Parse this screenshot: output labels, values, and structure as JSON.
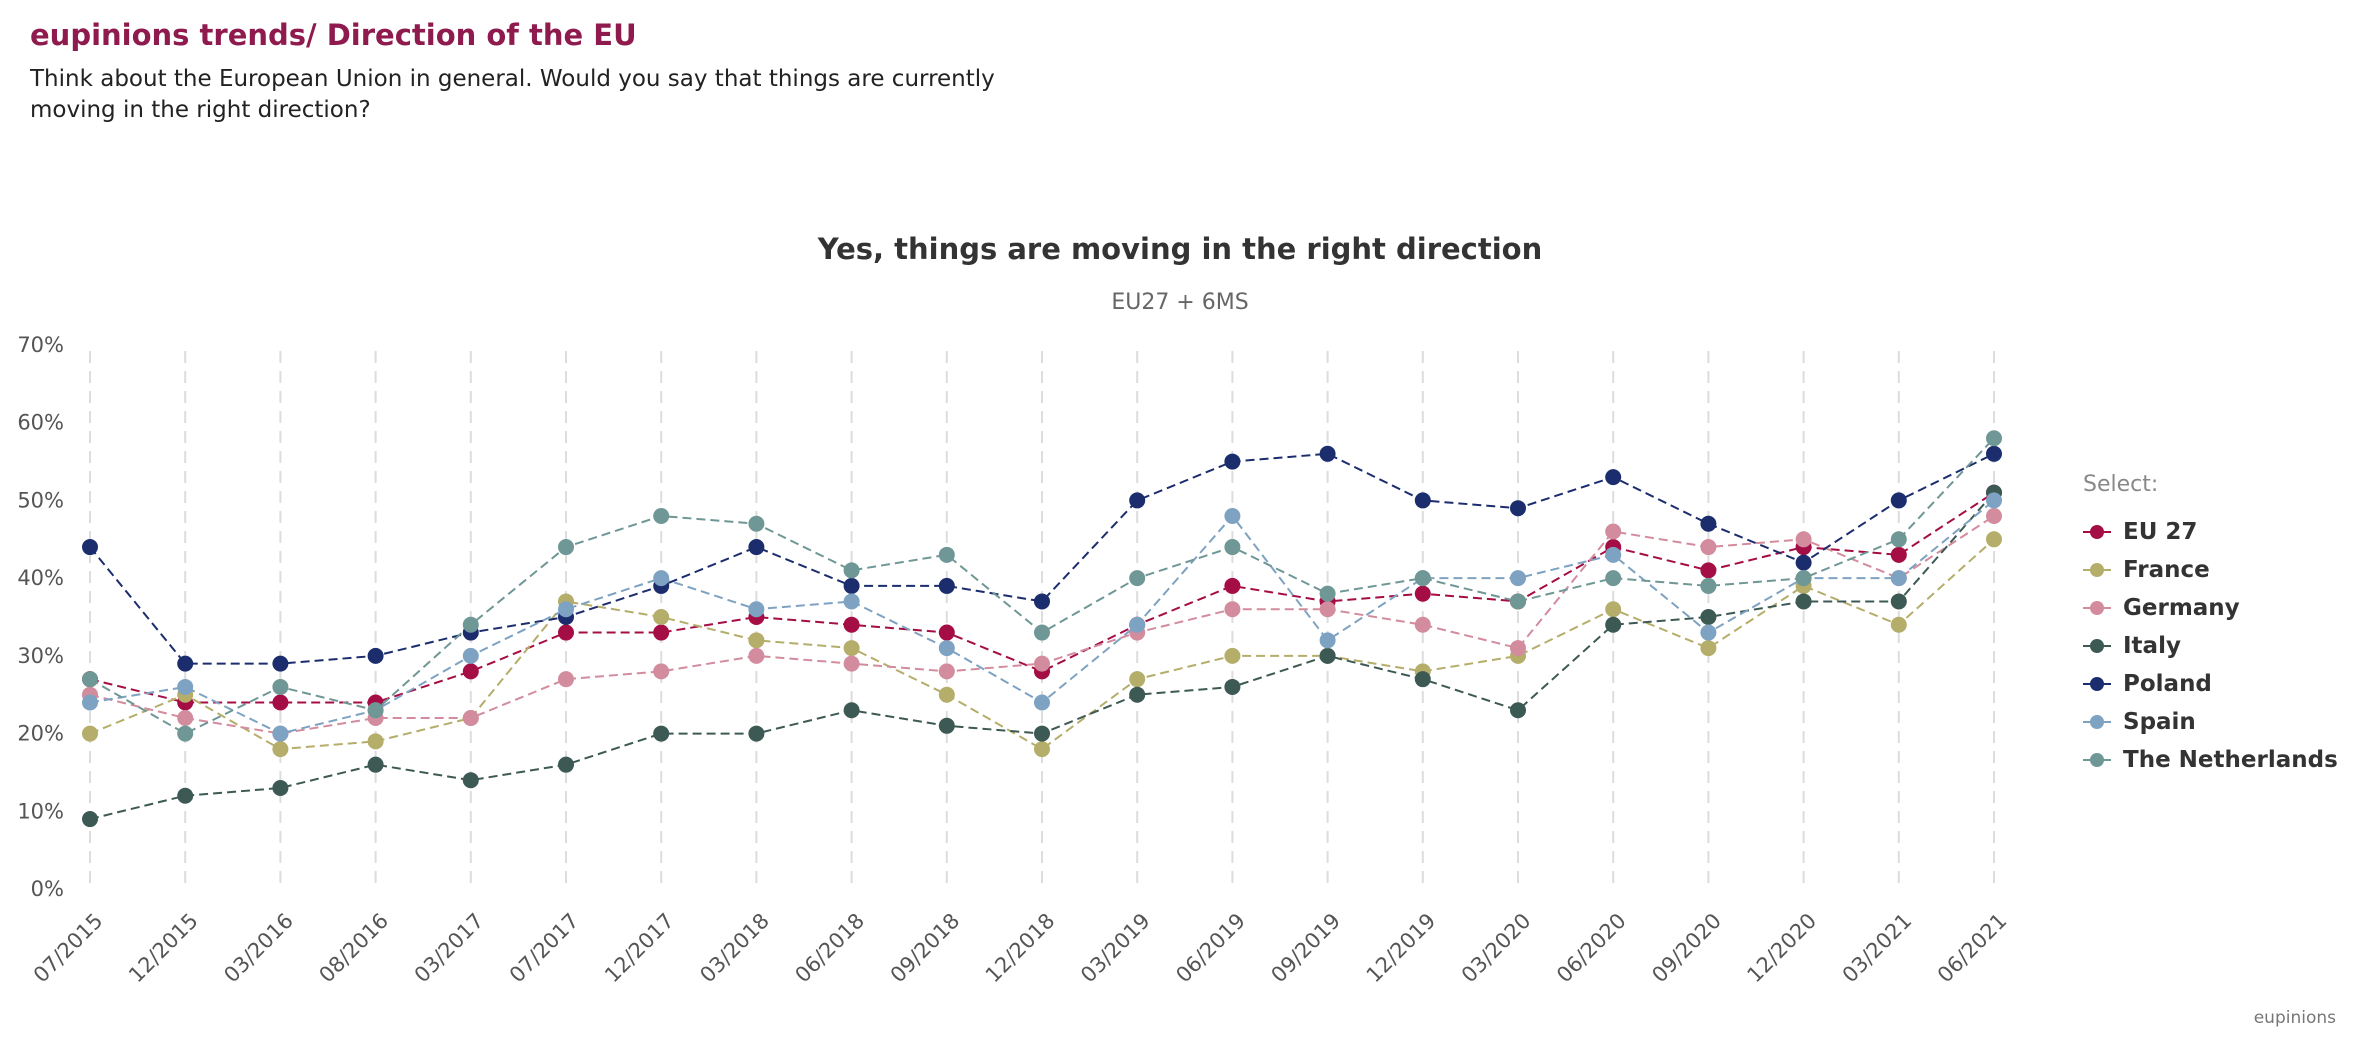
{
  "header": {
    "title": "eupinions trends/ Direction of the EU",
    "question": "Think about the European Union in general. Would you say that things are currently moving in the right direction?"
  },
  "chart_data": {
    "type": "line",
    "title": "Yes, things are moving in the right direction",
    "subtitle": "EU27 + 6MS",
    "xlabel": "",
    "ylabel": "",
    "ylim": [
      0,
      70
    ],
    "y_ticks": [
      0,
      10,
      20,
      30,
      40,
      50,
      60,
      70
    ],
    "y_tick_suffix": "%",
    "categories": [
      "07/2015",
      "12/2015",
      "03/2016",
      "08/2016",
      "03/2017",
      "07/2017",
      "12/2017",
      "03/2018",
      "06/2018",
      "09/2018",
      "12/2018",
      "03/2019",
      "06/2019",
      "09/2019",
      "12/2019",
      "03/2020",
      "06/2020",
      "09/2020",
      "12/2020",
      "03/2021",
      "06/2021"
    ],
    "grid": "vertical dashed",
    "legend_position": "right",
    "series": [
      {
        "name": "EU 27",
        "color": "#a50d45",
        "values": [
          27,
          24,
          24,
          24,
          28,
          33,
          33,
          35,
          34,
          33,
          28,
          34,
          39,
          37,
          38,
          37,
          44,
          41,
          44,
          43,
          51
        ]
      },
      {
        "name": "France",
        "color": "#b5ad6a",
        "values": [
          20,
          25,
          18,
          19,
          22,
          37,
          35,
          32,
          31,
          25,
          18,
          27,
          30,
          30,
          28,
          30,
          36,
          31,
          39,
          34,
          45
        ]
      },
      {
        "name": "Germany",
        "color": "#d28c9e",
        "values": [
          25,
          22,
          20,
          22,
          22,
          27,
          28,
          30,
          29,
          28,
          29,
          33,
          36,
          36,
          34,
          31,
          46,
          44,
          45,
          40,
          48
        ]
      },
      {
        "name": "Italy",
        "color": "#3d5954",
        "values": [
          9,
          12,
          13,
          16,
          14,
          16,
          20,
          20,
          23,
          21,
          20,
          25,
          26,
          30,
          27,
          23,
          34,
          35,
          37,
          37,
          51
        ]
      },
      {
        "name": "Poland",
        "color": "#1c2d6e",
        "values": [
          44,
          29,
          29,
          30,
          33,
          35,
          39,
          44,
          39,
          39,
          37,
          50,
          55,
          56,
          50,
          49,
          53,
          47,
          42,
          50,
          56
        ]
      },
      {
        "name": "Spain",
        "color": "#7ea2c2",
        "values": [
          24,
          26,
          20,
          23,
          30,
          36,
          40,
          36,
          37,
          31,
          24,
          34,
          48,
          32,
          40,
          40,
          43,
          33,
          40,
          40,
          50
        ]
      },
      {
        "name": "The Netherlands",
        "color": "#6e9795",
        "values": [
          27,
          20,
          26,
          23,
          34,
          44,
          48,
          47,
          41,
          43,
          33,
          40,
          44,
          38,
          40,
          37,
          40,
          39,
          40,
          45,
          58
        ]
      }
    ]
  },
  "legend": {
    "heading": "Select:"
  },
  "credit": "eupinions"
}
